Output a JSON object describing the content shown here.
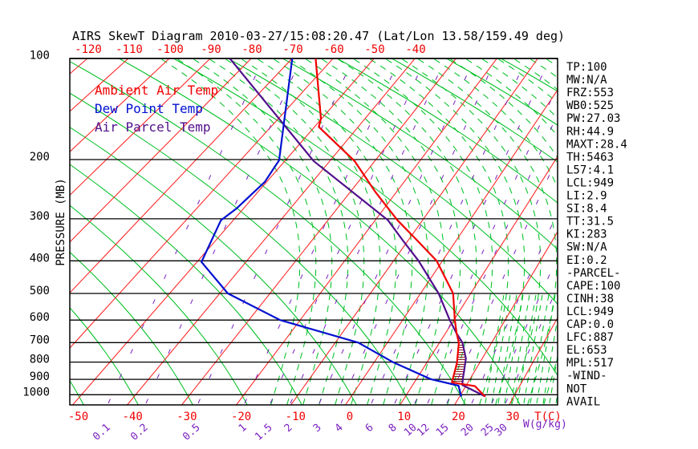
{
  "title": "AIRS SkewT Diagram 2010-03-27/15:08:20.47 (Lat/Lon 13.58/159.49 deg)",
  "legend": {
    "items": [
      {
        "label": "Ambient Air Temp",
        "color": "#f00000"
      },
      {
        "label": "Dew Point Temp",
        "color": "#0010d0"
      },
      {
        "label": "Air Parcel Temp",
        "color": "#50108c"
      }
    ]
  },
  "stats": {
    "lines": [
      "TP:100",
      "MW:N/A",
      "FRZ:553",
      "WB0:525",
      "PW:27.03",
      "RH:44.9",
      "MAXT:28.4",
      "TH:5463",
      "L57:4.1",
      "LCL:949",
      "LI:2.9",
      "SI:8.4",
      "TT:31.5",
      "KI:283",
      "SW:N/A",
      "EI:0.2",
      "-PARCEL-",
      "CAPE:100",
      "CINH:38",
      "LCL:949",
      "CAP:0.0",
      "LFC:887",
      "EL:653",
      "MPL:517",
      "-WIND-",
      "NOT",
      "AVAIL"
    ]
  },
  "chart_data": {
    "type": "skewt",
    "title": "AIRS SkewT Diagram 2010-03-27/15:08:20.47 (Lat/Lon 13.58/159.49 deg)",
    "axes": {
      "pressure_label": "PRESSURE (MB)",
      "pressure_ticks_mb": [
        100,
        200,
        300,
        400,
        500,
        600,
        700,
        800,
        900,
        1000
      ],
      "top_temp_ticks_c": [
        -120,
        -110,
        -100,
        -90,
        -80,
        -70,
        -60,
        -50,
        -40
      ],
      "bottom_temp_ticks_c": [
        -50,
        -40,
        -30,
        -20,
        -10,
        0,
        10,
        20,
        30
      ],
      "temp_unit_label": "T(C)",
      "mixing_ratio_ticks_gkg": [
        0.1,
        0.2,
        0.5,
        1,
        1.5,
        2,
        3,
        4,
        6,
        8,
        10,
        12,
        15,
        20,
        25,
        30
      ],
      "mixing_ratio_axis_x": [
        135,
        182,
        247,
        305,
        337,
        362,
        398,
        425,
        463,
        492,
        517,
        533,
        557,
        588,
        613,
        630
      ],
      "mixing_ratio_unit_label": "W(g/kg)",
      "grid": true
    },
    "series": {
      "ambient_temp_c_by_mb": [
        [
          100,
          -64.3
        ],
        [
          151,
          -50.2
        ],
        [
          160,
          -49.0
        ],
        [
          202,
          -34.5
        ],
        [
          250,
          -24.5
        ],
        [
          303,
          -15.3
        ],
        [
          348,
          -8.1
        ],
        [
          400,
          -1.2
        ],
        [
          500,
          6.5
        ],
        [
          600,
          10.2
        ],
        [
          658,
          12.2
        ],
        [
          700,
          13.7
        ],
        [
          803,
          15.7
        ],
        [
          919,
          17.0
        ],
        [
          943,
          21.7
        ],
        [
          1010,
          24.6
        ]
      ],
      "dew_point_c_by_mb": [
        [
          100,
          -70.0
        ],
        [
          201,
          -51.4
        ],
        [
          233,
          -50.4
        ],
        [
          280,
          -51.5
        ],
        [
          303,
          -52.6
        ],
        [
          403,
          -49.1
        ],
        [
          500,
          -38.4
        ],
        [
          600,
          -23.9
        ],
        [
          700,
          -5.6
        ],
        [
          800,
          3.5
        ],
        [
          900,
          12.8
        ],
        [
          940,
          18.6
        ],
        [
          1008,
          20.2
        ]
      ],
      "parcel_temp_c_by_mb": [
        [
          100,
          -85.3
        ],
        [
          202,
          -43.6
        ],
        [
          303,
          -17.3
        ],
        [
          348,
          -11.1
        ],
        [
          400,
          -4.9
        ],
        [
          500,
          3.6
        ],
        [
          600,
          9.2
        ],
        [
          658,
          12.2
        ],
        [
          700,
          14.4
        ],
        [
          780,
          16.9
        ],
        [
          850,
          18.0
        ],
        [
          887,
          18.5
        ],
        [
          935,
          19.2
        ],
        [
          1010,
          24.6
        ]
      ]
    },
    "cape_hatch_mb_range": [
      658,
      928
    ],
    "colors": {
      "isotherm": "#ff2222",
      "dry_adiabat": "#00c125",
      "moist_adiabat": "#00c125",
      "mixing_ratio": "#7a1fc0",
      "ambient": "#f00000",
      "dew_point": "#0010d0",
      "parcel": "#50108c",
      "hatch": "#8b1a1a",
      "frame": "#000000"
    }
  }
}
